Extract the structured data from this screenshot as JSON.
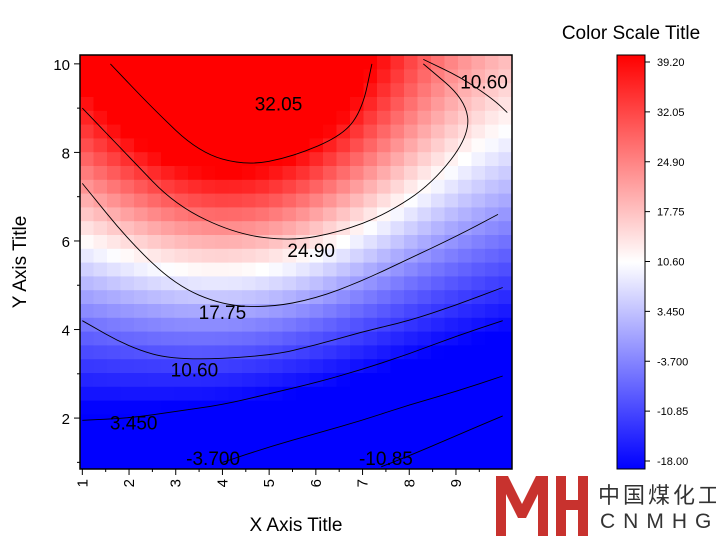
{
  "chart_data": {
    "type": "heatmap",
    "subtype": "contour",
    "xlabel": "X Axis Title",
    "ylabel": "Y Axis Title",
    "xlim": [
      0.95,
      10.2
    ],
    "ylim": [
      0.85,
      10.2
    ],
    "x_ticks": [
      1,
      2,
      3,
      4,
      5,
      6,
      7,
      8,
      9
    ],
    "y_ticks": [
      2,
      4,
      6,
      8,
      10
    ],
    "x_tick_labels": [
      "1",
      "2",
      "3",
      "4",
      "5",
      "6",
      "7",
      "8",
      "9"
    ],
    "y_tick_labels": [
      "2",
      "4",
      "6",
      "8",
      "10"
    ],
    "colorscale": {
      "title": "Color Scale Title",
      "min": -18.0,
      "max": 39.2,
      "tick_labels": [
        "39.20",
        "32.05",
        "24.90",
        "17.75",
        "10.60",
        "3.450",
        "-3.700",
        "-10.85",
        "-18.00"
      ],
      "colors": {
        "low": "#0000ff",
        "mid": "#ffffff",
        "high": "#ff0000"
      }
    },
    "contour_levels": [
      -10.85,
      -3.7,
      3.45,
      10.6,
      17.75,
      24.9,
      32.05
    ],
    "contour_labels": [
      {
        "text": "32.05",
        "x": 5.2,
        "y": 9.1
      },
      {
        "text": "10.60",
        "x": 9.6,
        "y": 9.6
      },
      {
        "text": "24.90",
        "x": 5.9,
        "y": 5.8
      },
      {
        "text": "17.75",
        "x": 4.0,
        "y": 4.4
      },
      {
        "text": "10.60",
        "x": 3.4,
        "y": 3.1
      },
      {
        "text": "3.450",
        "x": 2.1,
        "y": 1.9
      },
      {
        "text": "-3.700",
        "x": 3.8,
        "y": 1.1
      },
      {
        "text": "-10.85",
        "x": 7.5,
        "y": 1.1
      }
    ],
    "contour_lines": [
      {
        "level": 32.05,
        "points": [
          [
            1.6,
            10.0
          ],
          [
            2.5,
            9.0
          ],
          [
            3.5,
            8.0
          ],
          [
            4.5,
            7.7
          ],
          [
            5.5,
            7.9
          ],
          [
            6.6,
            8.4
          ],
          [
            7.0,
            9.0
          ],
          [
            7.2,
            10.0
          ]
        ]
      },
      {
        "level": 24.9,
        "points": [
          [
            1.0,
            9.0
          ],
          [
            2.0,
            7.9
          ],
          [
            3.0,
            6.8
          ],
          [
            4.3,
            6.15
          ],
          [
            5.5,
            6.0
          ],
          [
            6.5,
            6.2
          ],
          [
            7.5,
            6.6
          ],
          [
            8.5,
            7.3
          ],
          [
            9.3,
            8.4
          ],
          [
            9.2,
            9.2
          ],
          [
            8.3,
            10.0
          ]
        ]
      },
      {
        "level": 17.75,
        "points": [
          [
            1.0,
            7.3
          ],
          [
            2.0,
            6.0
          ],
          [
            3.0,
            5.0
          ],
          [
            4.0,
            4.55
          ],
          [
            5.0,
            4.5
          ],
          [
            6.0,
            4.7
          ],
          [
            7.0,
            5.1
          ],
          [
            8.0,
            5.6
          ],
          [
            9.0,
            6.1
          ],
          [
            9.9,
            6.6
          ]
        ]
      },
      {
        "level": 10.6,
        "points": [
          [
            1.0,
            4.2
          ],
          [
            2.0,
            3.6
          ],
          [
            3.0,
            3.3
          ],
          [
            5.0,
            3.4
          ],
          [
            6.0,
            3.65
          ],
          [
            7.0,
            3.95
          ],
          [
            8.0,
            4.2
          ],
          [
            9.0,
            4.55
          ],
          [
            10.0,
            4.95
          ]
        ]
      },
      {
        "level": 10.6,
        "points": [
          [
            8.3,
            10.1
          ],
          [
            9.1,
            9.7
          ],
          [
            9.8,
            9.2
          ],
          [
            10.1,
            8.9
          ]
        ]
      },
      {
        "level": 3.45,
        "points": [
          [
            1.0,
            1.95
          ],
          [
            2.0,
            2.0
          ],
          [
            3.0,
            2.15
          ],
          [
            4.0,
            2.3
          ],
          [
            5.0,
            2.55
          ],
          [
            6.0,
            2.8
          ],
          [
            7.0,
            3.1
          ],
          [
            8.0,
            3.45
          ],
          [
            9.0,
            3.85
          ],
          [
            10.0,
            4.2
          ]
        ]
      },
      {
        "level": -3.7,
        "points": [
          [
            4.0,
            1.0
          ],
          [
            5.0,
            1.35
          ],
          [
            6.0,
            1.65
          ],
          [
            7.0,
            1.95
          ],
          [
            8.0,
            2.3
          ],
          [
            9.0,
            2.6
          ],
          [
            10.0,
            2.95
          ]
        ]
      },
      {
        "level": -10.85,
        "points": [
          [
            7.4,
            0.9
          ],
          [
            8.0,
            1.15
          ],
          [
            9.0,
            1.6
          ],
          [
            10.0,
            2.05
          ]
        ]
      }
    ],
    "grid": false,
    "legend": "right"
  },
  "watermark": {
    "chinese": "中国煤化工",
    "latin": "CNMHG"
  }
}
